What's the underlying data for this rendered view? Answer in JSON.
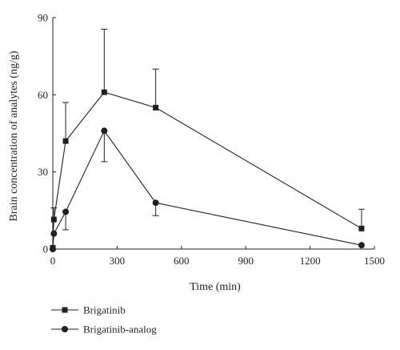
{
  "chart_data": {
    "type": "line",
    "xlabel": "Time (min)",
    "ylabel": "Brain concentration of analytes (ng/g)",
    "xlim": [
      0,
      1500
    ],
    "ylim": [
      0,
      90
    ],
    "xticks": [
      0,
      300,
      600,
      900,
      1200,
      1500
    ],
    "yticks": [
      0,
      30,
      60,
      90
    ],
    "x_tick_labels": [
      "0",
      "300",
      "600",
      "900",
      "1200",
      "1500"
    ],
    "y_tick_labels": [
      "0",
      "30",
      "60",
      "90"
    ],
    "grid": false,
    "legend_position": "bottom-left",
    "series": [
      {
        "name": "Brigatinib",
        "marker": "square",
        "color": "#231f20",
        "x": [
          0,
          5,
          60,
          240,
          480,
          1440
        ],
        "y": [
          0.5,
          11.5,
          42,
          61,
          55,
          8
        ],
        "err_upper": [
          0,
          4.5,
          15,
          24.5,
          15,
          7.5
        ]
      },
      {
        "name": "Brigatinib-analog",
        "marker": "circle",
        "color": "#231f20",
        "x": [
          0,
          5,
          60,
          240,
          480,
          1440
        ],
        "y": [
          0,
          6,
          14.5,
          46,
          18,
          1.5
        ],
        "err_lower": [
          0,
          0,
          7,
          12,
          5,
          0
        ]
      }
    ]
  }
}
